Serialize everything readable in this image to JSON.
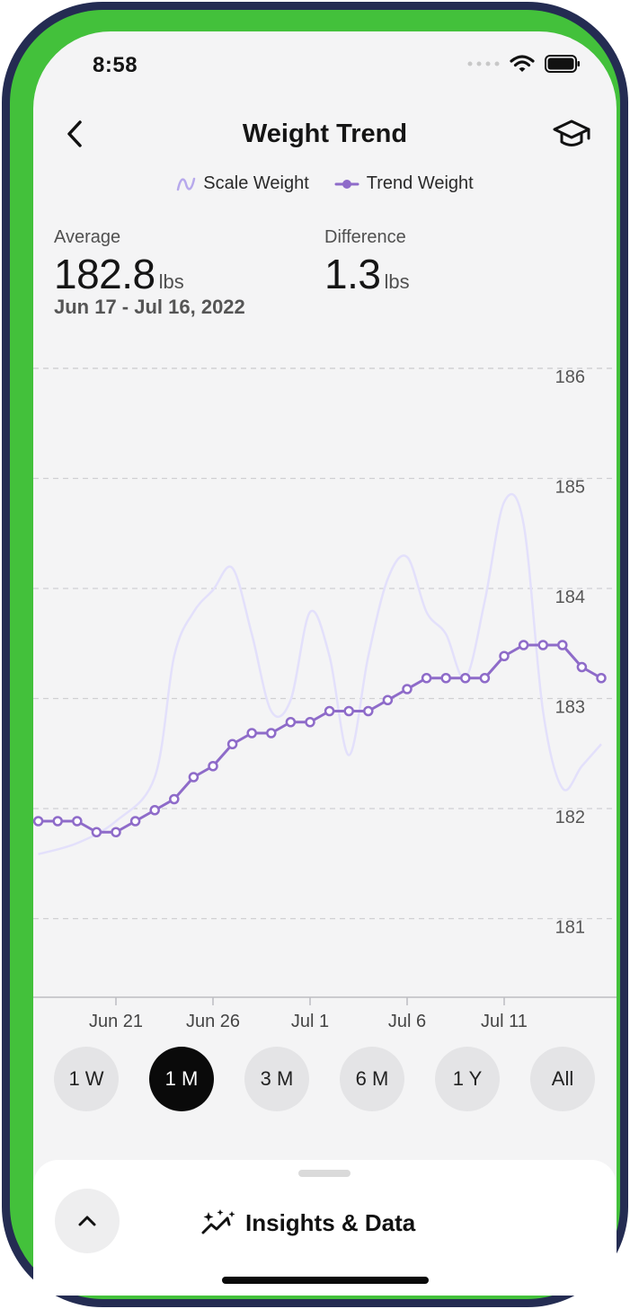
{
  "status_bar": {
    "time": "8:58"
  },
  "header": {
    "title": "Weight Trend",
    "back_icon": "chevron-left-icon",
    "learn_icon": "graduation-cap-icon"
  },
  "legend": [
    {
      "label": "Scale Weight",
      "icon": "scale-weight-icon"
    },
    {
      "label": "Trend Weight",
      "icon": "trend-weight-icon"
    }
  ],
  "stats": {
    "average": {
      "label": "Average",
      "value": "182.8",
      "unit": "lbs"
    },
    "difference": {
      "label": "Difference",
      "value": "1.3",
      "unit": "lbs"
    },
    "date_range": "Jun 17 - Jul 16, 2022"
  },
  "colors": {
    "trend": "#8e6bc9",
    "scale": "#e3e0fb",
    "accent_green": "#43c13b",
    "bezel": "#242c52"
  },
  "chart_data": {
    "type": "line",
    "x_labels": [
      "Jun 21",
      "Jun 26",
      "Jul 1",
      "Jul 6",
      "Jul 11"
    ],
    "x_label_dates": [
      "2022-06-21",
      "2022-06-26",
      "2022-07-01",
      "2022-07-06",
      "2022-07-11"
    ],
    "ylim": [
      180.4,
      186.4
    ],
    "y_ticks": [
      186,
      185,
      184,
      183,
      182,
      181
    ],
    "series": [
      {
        "name": "Trend Weight",
        "style": "line-markers",
        "x": [
          "2022-06-17",
          "2022-06-18",
          "2022-06-19",
          "2022-06-20",
          "2022-06-21",
          "2022-06-22",
          "2022-06-23",
          "2022-06-24",
          "2022-06-25",
          "2022-06-26",
          "2022-06-27",
          "2022-06-28",
          "2022-06-29",
          "2022-06-30",
          "2022-07-01",
          "2022-07-02",
          "2022-07-03",
          "2022-07-04",
          "2022-07-05",
          "2022-07-06",
          "2022-07-07",
          "2022-07-08",
          "2022-07-09",
          "2022-07-10",
          "2022-07-11",
          "2022-07-12",
          "2022-07-13",
          "2022-07-14",
          "2022-07-15",
          "2022-07-16"
        ],
        "values": [
          182.0,
          182.0,
          182.0,
          181.9,
          181.9,
          182.0,
          182.1,
          182.2,
          182.4,
          182.5,
          182.7,
          182.8,
          182.8,
          182.9,
          182.9,
          183.0,
          183.0,
          183.0,
          183.1,
          183.2,
          183.3,
          183.3,
          183.3,
          183.3,
          183.5,
          183.6,
          183.6,
          183.6,
          183.4,
          183.3
        ]
      },
      {
        "name": "Scale Weight",
        "style": "smooth-line",
        "x": [
          "2022-06-17",
          "2022-06-19",
          "2022-06-21",
          "2022-06-23",
          "2022-06-24",
          "2022-06-25",
          "2022-06-26",
          "2022-06-27",
          "2022-06-28",
          "2022-06-29",
          "2022-06-30",
          "2022-07-01",
          "2022-07-02",
          "2022-07-03",
          "2022-07-04",
          "2022-07-05",
          "2022-07-06",
          "2022-07-07",
          "2022-07-08",
          "2022-07-09",
          "2022-07-10",
          "2022-07-11",
          "2022-07-12",
          "2022-07-13",
          "2022-07-14",
          "2022-07-15",
          "2022-07-16"
        ],
        "values": [
          181.7,
          181.8,
          182.0,
          182.4,
          183.5,
          183.9,
          184.1,
          184.3,
          183.7,
          183.0,
          183.1,
          183.9,
          183.5,
          182.6,
          183.5,
          184.2,
          184.4,
          183.9,
          183.7,
          183.3,
          184.0,
          184.9,
          184.7,
          183.0,
          182.3,
          182.5,
          182.7
        ]
      }
    ],
    "grid": true
  },
  "periods": [
    {
      "label": "1 W",
      "active": false
    },
    {
      "label": "1 M",
      "active": true
    },
    {
      "label": "3 M",
      "active": false
    },
    {
      "label": "6 M",
      "active": false
    },
    {
      "label": "1 Y",
      "active": false
    },
    {
      "label": "All",
      "active": false
    }
  ],
  "bottom_sheet": {
    "title": "Insights & Data",
    "title_icon": "sparkle-trend-icon",
    "expand_icon": "chevron-up-icon"
  }
}
